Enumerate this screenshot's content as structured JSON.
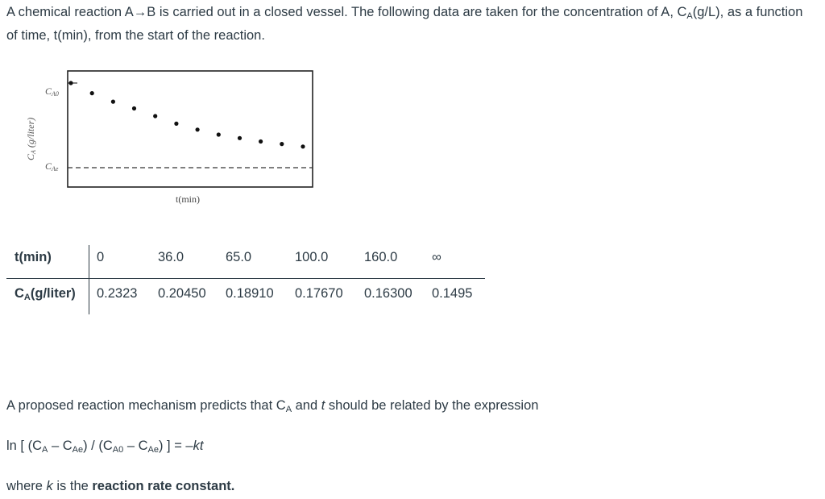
{
  "intro": {
    "part1": "A chemical reaction A→B is carried out in a closed vessel. The following data are taken for the concentration of A, C",
    "sub": "A",
    "part2": "(g/L), as a function of time, t(min), from the start of the reaction."
  },
  "figure": {
    "y_axis_label": "C",
    "y_axis_label_sub": "A",
    "y_axis_label_unit": "(g/liter)",
    "x_axis_label": "t(min)",
    "cao_label": "C",
    "cao_sub": "A0",
    "cae_label": "C",
    "cae_sub": "Ae"
  },
  "chart_data": {
    "type": "scatter",
    "title": "",
    "xlabel": "t(min)",
    "ylabel": "CA (g/liter)",
    "y_reference_lines": [
      "CA0",
      "CAe"
    ],
    "points_description_free": true,
    "values": [
      1.0,
      0.88,
      0.78,
      0.7,
      0.61,
      0.52,
      0.45,
      0.39,
      0.35,
      0.31,
      0.28,
      0.25
    ],
    "grid": false
  },
  "table": {
    "header_row_label": "t(min)",
    "header_values": [
      "0",
      "36.0",
      "65.0",
      "100.0",
      "160.0",
      "∞"
    ],
    "data_row_label_prefix": "C",
    "data_row_label_sub": "A",
    "data_row_label_suffix": "(g/liter)",
    "data_values": [
      "0.2323",
      "0.20450",
      "0.18910",
      "0.17670",
      "0.16300",
      "0.1495"
    ]
  },
  "mechanism": {
    "p1": "A proposed reaction mechanism predicts that C",
    "p1_sub": "A",
    "p1_and": " and ",
    "p1_t": "t",
    "p1_end": " should be related by the expression"
  },
  "expression": {
    "a": "ln [ (C",
    "a_sub": "A",
    "b": " – C",
    "b_sub": "Ae",
    "c": ") / (C",
    "c_sub": "A0",
    "d": " – C",
    "d_sub": "Ae",
    "e": ") ] = –",
    "kt": "kt"
  },
  "where": {
    "p1": "where ",
    "k": "k",
    "p2": " is the ",
    "bold": "reaction rate constant."
  }
}
